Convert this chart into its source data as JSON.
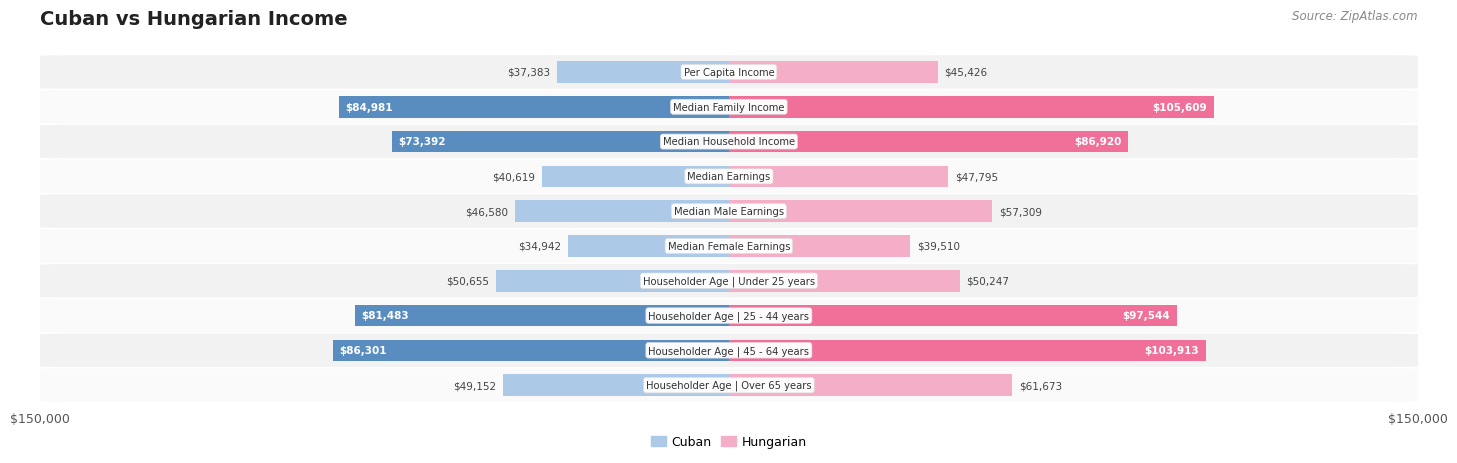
{
  "title": "Cuban vs Hungarian Income",
  "source": "Source: ZipAtlas.com",
  "categories": [
    "Per Capita Income",
    "Median Family Income",
    "Median Household Income",
    "Median Earnings",
    "Median Male Earnings",
    "Median Female Earnings",
    "Householder Age | Under 25 years",
    "Householder Age | 25 - 44 years",
    "Householder Age | 45 - 64 years",
    "Householder Age | Over 65 years"
  ],
  "cuban_values": [
    37383,
    84981,
    73392,
    40619,
    46580,
    34942,
    50655,
    81483,
    86301,
    49152
  ],
  "hungarian_values": [
    45426,
    105609,
    86920,
    47795,
    57309,
    39510,
    50247,
    97544,
    103913,
    61673
  ],
  "cuban_labels": [
    "$37,383",
    "$84,981",
    "$73,392",
    "$40,619",
    "$46,580",
    "$34,942",
    "$50,655",
    "$81,483",
    "$86,301",
    "$49,152"
  ],
  "hungarian_labels": [
    "$45,426",
    "$105,609",
    "$86,920",
    "$47,795",
    "$57,309",
    "$39,510",
    "$50,247",
    "$97,544",
    "$103,913",
    "$61,673"
  ],
  "cuban_color_light": "#adc9e8",
  "cuban_color_dark": "#5a8dbf",
  "hungarian_color_light": "#f5aec8",
  "hungarian_color_dark": "#f07099",
  "max_value": 150000,
  "x_label_left": "$150,000",
  "x_label_right": "$150,000",
  "cuban_large_threshold": 65000,
  "hungarian_large_threshold": 65000,
  "bar_height": 0.62,
  "row_bg_even": "#f2f2f2",
  "row_bg_odd": "#fafafa",
  "background_color": "#ffffff",
  "legend_left_label": "Cuban",
  "legend_right_label": "Hungarian"
}
